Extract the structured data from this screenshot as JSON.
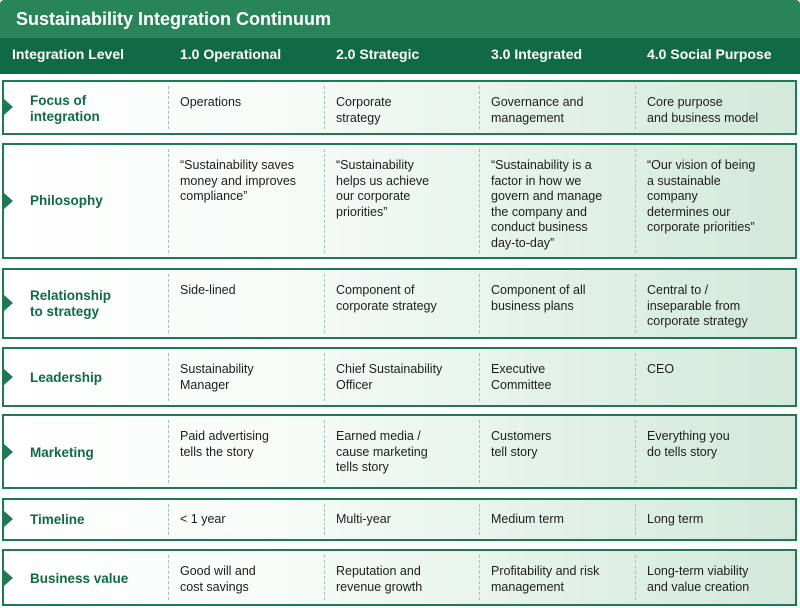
{
  "title": "Sustainability Integration Continuum",
  "header": {
    "level_label": "Integration Level",
    "columns": [
      "1.0 Operational",
      "2.0 Strategic",
      "3.0 Integrated",
      "4.0 Social Purpose"
    ]
  },
  "rows": [
    {
      "label": "Focus of\nintegration",
      "cells": [
        "Operations",
        "Corporate\nstrategy",
        "Governance and\nmanagement",
        "Core purpose\nand business model"
      ]
    },
    {
      "label": "Philosophy",
      "cells": [
        "“Sustainability saves\n money and improves\n compliance”",
        "“Sustainability\n helps us achieve\n our corporate\n priorities”",
        "“Sustainability is a\n factor in how we\n govern and manage\n the company and\n conduct business\n day-to-day”",
        "“Our vision of being\n a sustainable\n company\n determines our\n corporate priorities”"
      ]
    },
    {
      "label": "Relationship\nto strategy",
      "cells": [
        "Side-lined",
        "Component of\ncorporate strategy",
        "Component of all\nbusiness plans",
        "Central to /\ninseparable from\ncorporate strategy"
      ]
    },
    {
      "label": "Leadership",
      "cells": [
        "Sustainability\nManager",
        "Chief Sustainability\nOfficer",
        "Executive\nCommittee",
        "CEO"
      ]
    },
    {
      "label": "Marketing",
      "cells": [
        "Paid advertising\ntells the story",
        "Earned media /\ncause marketing\ntells story",
        "Customers\ntell story",
        "Everything you\ndo tells story"
      ]
    },
    {
      "label": "Timeline",
      "cells": [
        "< 1 year",
        "Multi-year",
        "Medium term",
        "Long term"
      ]
    },
    {
      "label": "Business value",
      "cells": [
        "Good will and\ncost savings",
        "Reputation and\nrevenue growth",
        "Profitability and risk\nmanagement",
        "Long-term viability\nand value creation"
      ]
    }
  ],
  "colors": {
    "title_bg": "#28855a",
    "header_bg": "#0f6a45",
    "accent": "#1e7a52"
  }
}
